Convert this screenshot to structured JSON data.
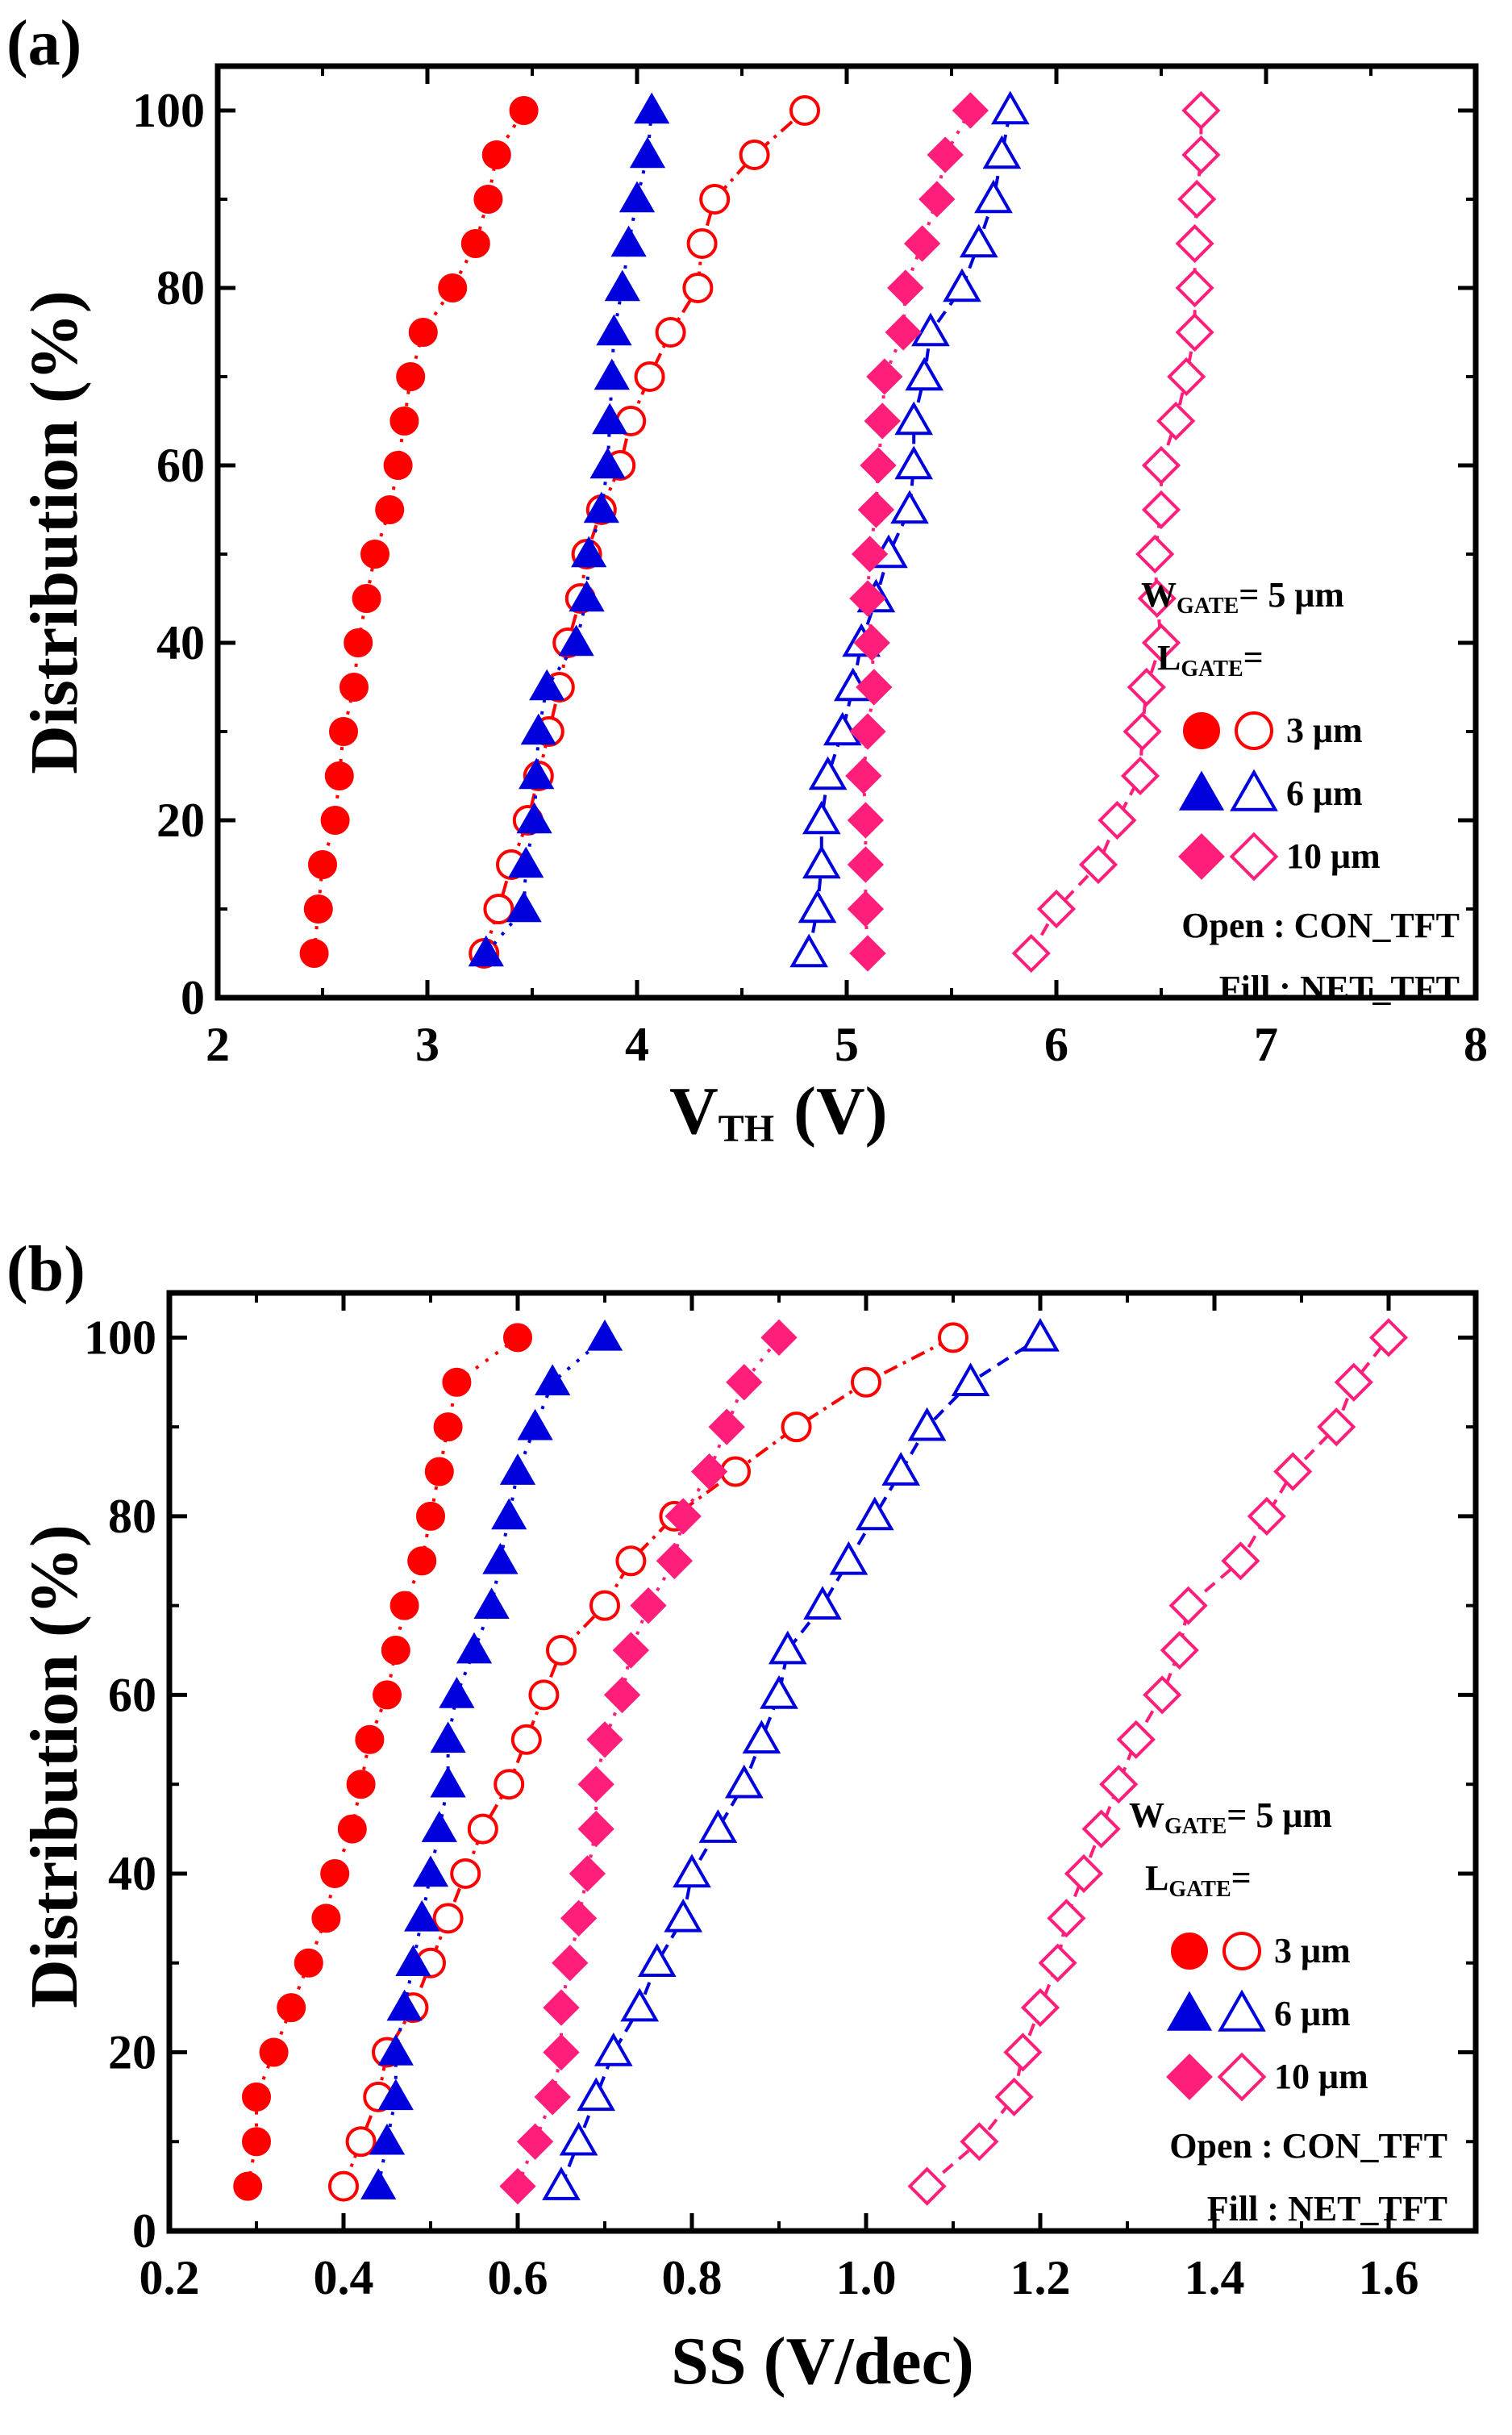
{
  "chart_data": [
    {
      "type": "scatter",
      "panel_label": "(a)",
      "xlabel": "V",
      "xlabel_sub": "TH",
      "xlabel_unit": "(V)",
      "ylabel": "Distribution (%)",
      "xlim": [
        2,
        8
      ],
      "ylim": [
        0,
        105
      ],
      "xticks": [
        "2",
        "3",
        "4",
        "5",
        "6",
        "7",
        "8"
      ],
      "yticks": [
        "0",
        "20",
        "40",
        "60",
        "80",
        "100"
      ],
      "y": [
        5,
        10,
        15,
        20,
        25,
        30,
        35,
        40,
        45,
        50,
        55,
        60,
        65,
        70,
        75,
        80,
        85,
        90,
        95,
        100
      ],
      "series": [
        {
          "name": "NET_TFT 3 um",
          "color": "#ff0000",
          "marker": "circle",
          "filled": true,
          "line": "dotted",
          "x": [
            2.46,
            2.48,
            2.5,
            2.56,
            2.58,
            2.6,
            2.65,
            2.67,
            2.71,
            2.75,
            2.82,
            2.86,
            2.89,
            2.92,
            2.98,
            3.12,
            3.23,
            3.29,
            3.33,
            3.46
          ]
        },
        {
          "name": "CON_TFT 3 um",
          "color": "#ff0000",
          "marker": "circle",
          "filled": false,
          "line": "dashdot",
          "x": [
            3.27,
            3.34,
            3.4,
            3.48,
            3.53,
            3.58,
            3.63,
            3.67,
            3.73,
            3.76,
            3.83,
            3.92,
            3.97,
            4.06,
            4.16,
            4.29,
            4.31,
            4.37,
            4.56,
            4.8
          ]
        },
        {
          "name": "NET_TFT 6 um",
          "color": "#0000dd",
          "marker": "triangle",
          "filled": true,
          "line": "dotted",
          "x": [
            3.28,
            3.46,
            3.47,
            3.51,
            3.52,
            3.53,
            3.57,
            3.71,
            3.76,
            3.77,
            3.83,
            3.86,
            3.87,
            3.88,
            3.89,
            3.93,
            3.96,
            4.0,
            4.05,
            4.07
          ]
        },
        {
          "name": "CON_TFT 6 um",
          "color": "#0000dd",
          "marker": "triangle",
          "filled": false,
          "line": "dashed",
          "x": [
            4.82,
            4.86,
            4.88,
            4.88,
            4.91,
            4.98,
            5.03,
            5.07,
            5.14,
            5.2,
            5.3,
            5.32,
            5.32,
            5.37,
            5.4,
            5.55,
            5.63,
            5.7,
            5.74,
            5.78
          ]
        },
        {
          "name": "NET_TFT 10 um",
          "color": "#ff1f7a",
          "marker": "diamond",
          "filled": true,
          "line": "dotted",
          "x": [
            5.1,
            5.09,
            5.09,
            5.09,
            5.08,
            5.1,
            5.13,
            5.12,
            5.1,
            5.11,
            5.14,
            5.15,
            5.17,
            5.18,
            5.27,
            5.28,
            5.36,
            5.43,
            5.47,
            5.59
          ]
        },
        {
          "name": "CON_TFT 10 um",
          "color": "#ff1f7a",
          "marker": "diamond",
          "filled": false,
          "line": "dashed",
          "x": [
            5.88,
            6.0,
            6.2,
            6.29,
            6.4,
            6.41,
            6.43,
            6.5,
            6.48,
            6.47,
            6.5,
            6.5,
            6.57,
            6.62,
            6.66,
            6.66,
            6.66,
            6.67,
            6.69,
            6.69
          ]
        }
      ],
      "legend": {
        "w_label": "W",
        "w_sub": "GATE",
        "w_value": "= 5 μm",
        "l_label": "L",
        "l_sub": "GATE",
        "l_value": "=",
        "sizes": [
          "3 μm",
          "6 μm",
          "10 μm"
        ],
        "open_note": "Open : CON_TFT",
        "fill_note": "Fill : NET_TFT"
      }
    },
    {
      "type": "scatter",
      "panel_label": "(b)",
      "xlabel": "SS (V/dec)",
      "ylabel": "Distribution (%)",
      "xlim": [
        0.2,
        1.7
      ],
      "ylim": [
        0,
        105
      ],
      "xticks": [
        "0.2",
        "0.4",
        "0.6",
        "0.8",
        "1.0",
        "1.2",
        "1.4",
        "1.6"
      ],
      "yticks": [
        "0",
        "20",
        "40",
        "60",
        "80",
        "100"
      ],
      "y": [
        5,
        10,
        15,
        20,
        25,
        30,
        35,
        40,
        45,
        50,
        55,
        60,
        65,
        70,
        75,
        80,
        85,
        90,
        95,
        100
      ],
      "series": [
        {
          "name": "NET_TFT 3 um",
          "color": "#ff0000",
          "marker": "circle",
          "filled": true,
          "line": "dotted",
          "x": [
            0.29,
            0.3,
            0.3,
            0.32,
            0.34,
            0.36,
            0.38,
            0.39,
            0.41,
            0.42,
            0.43,
            0.45,
            0.46,
            0.47,
            0.49,
            0.5,
            0.51,
            0.52,
            0.53,
            0.6
          ]
        },
        {
          "name": "CON_TFT 3 um",
          "color": "#ff0000",
          "marker": "circle",
          "filled": false,
          "line": "dashdot",
          "x": [
            0.4,
            0.42,
            0.44,
            0.45,
            0.48,
            0.5,
            0.52,
            0.54,
            0.56,
            0.59,
            0.61,
            0.63,
            0.65,
            0.7,
            0.73,
            0.78,
            0.85,
            0.92,
            1.0,
            1.1
          ]
        },
        {
          "name": "NET_TFT 6 um",
          "color": "#0000dd",
          "marker": "triangle",
          "filled": true,
          "line": "dotted",
          "x": [
            0.44,
            0.45,
            0.46,
            0.46,
            0.47,
            0.48,
            0.49,
            0.5,
            0.51,
            0.52,
            0.52,
            0.53,
            0.55,
            0.57,
            0.58,
            0.59,
            0.6,
            0.62,
            0.64,
            0.7
          ]
        },
        {
          "name": "CON_TFT 6 um",
          "color": "#0000dd",
          "marker": "triangle",
          "filled": false,
          "line": "dashed",
          "x": [
            0.65,
            0.67,
            0.69,
            0.71,
            0.74,
            0.76,
            0.79,
            0.8,
            0.83,
            0.86,
            0.88,
            0.9,
            0.91,
            0.95,
            0.98,
            1.01,
            1.04,
            1.07,
            1.12,
            1.2
          ]
        },
        {
          "name": "NET_TFT 10 um",
          "color": "#ff1f7a",
          "marker": "diamond",
          "filled": true,
          "line": "dotted",
          "x": [
            0.6,
            0.62,
            0.64,
            0.65,
            0.65,
            0.66,
            0.67,
            0.68,
            0.69,
            0.69,
            0.7,
            0.72,
            0.73,
            0.75,
            0.78,
            0.79,
            0.82,
            0.84,
            0.86,
            0.9
          ]
        },
        {
          "name": "CON_TFT 10 um",
          "color": "#ff1f7a",
          "marker": "diamond",
          "filled": false,
          "line": "dashed",
          "x": [
            1.07,
            1.13,
            1.17,
            1.18,
            1.2,
            1.22,
            1.23,
            1.25,
            1.27,
            1.29,
            1.31,
            1.34,
            1.36,
            1.37,
            1.43,
            1.46,
            1.49,
            1.54,
            1.56,
            1.6
          ]
        }
      ],
      "legend": {
        "w_label": "W",
        "w_sub": "GATE",
        "w_value": "= 5 μm",
        "l_label": "L",
        "l_sub": "GATE",
        "l_value": "=",
        "sizes": [
          "3 μm",
          "6 μm",
          "10 μm"
        ],
        "open_note": "Open : CON_TFT",
        "fill_note": "Fill : NET_TFT"
      }
    }
  ]
}
